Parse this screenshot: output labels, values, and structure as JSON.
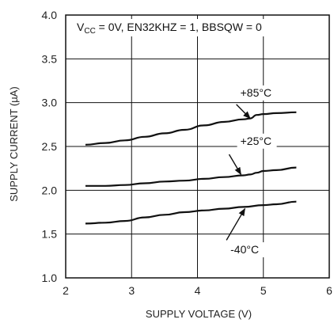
{
  "chart_data": {
    "type": "line",
    "title": "",
    "xlabel": "SUPPLY VOLTAGE (V)",
    "ylabel": "SUPPLY CURRENT (µA)",
    "xlim": [
      2,
      6
    ],
    "ylim": [
      1.0,
      4.0
    ],
    "xticks": [
      "2",
      "3",
      "4",
      "5",
      "6"
    ],
    "yticks": [
      "1.0",
      "1.5",
      "2.0",
      "2.5",
      "3.0",
      "3.5",
      "4.0"
    ],
    "grid": true,
    "conditions": {
      "prefix": "V",
      "sub": "CC",
      "rest": " = 0V, EN32KHZ = 1, BBSQW = 0"
    },
    "series": [
      {
        "name": "+85°C",
        "x": [
          2.3,
          2.6,
          2.9,
          3.2,
          3.5,
          3.8,
          4.1,
          4.4,
          4.7,
          4.8,
          4.9,
          5.0,
          5.2,
          5.5
        ],
        "y": [
          2.52,
          2.54,
          2.57,
          2.61,
          2.65,
          2.69,
          2.74,
          2.78,
          2.81,
          2.82,
          2.86,
          2.87,
          2.88,
          2.89
        ]
      },
      {
        "name": "+25°C",
        "x": [
          2.3,
          2.6,
          2.9,
          3.2,
          3.5,
          3.8,
          4.1,
          4.4,
          4.7,
          4.8,
          4.9,
          5.0,
          5.2,
          5.5
        ],
        "y": [
          2.05,
          2.05,
          2.06,
          2.08,
          2.1,
          2.11,
          2.13,
          2.15,
          2.17,
          2.18,
          2.2,
          2.22,
          2.23,
          2.26
        ]
      },
      {
        "name": "-40°C",
        "x": [
          2.3,
          2.6,
          2.9,
          3.2,
          3.5,
          3.8,
          4.1,
          4.4,
          4.7,
          5.0,
          5.2,
          5.5
        ],
        "y": [
          1.62,
          1.63,
          1.65,
          1.69,
          1.72,
          1.75,
          1.77,
          1.79,
          1.81,
          1.83,
          1.84,
          1.87
        ]
      }
    ],
    "annotations": [
      {
        "text": "+85°C",
        "series": 0,
        "text_x": 4.65,
        "text_y": 3.07,
        "arrow_from": [
          4.59,
          2.98
        ],
        "arrow_to": [
          4.8,
          2.82
        ]
      },
      {
        "text": "+25°C",
        "series": 1,
        "text_x": 4.65,
        "text_y": 2.52,
        "arrow_from": [
          4.48,
          2.41
        ],
        "arrow_to": [
          4.66,
          2.18
        ]
      },
      {
        "text": "-40°C",
        "series": 2,
        "text_x": 4.5,
        "text_y": 1.28,
        "arrow_from": [
          4.44,
          1.43
        ],
        "arrow_to": [
          4.72,
          1.79
        ]
      }
    ]
  }
}
